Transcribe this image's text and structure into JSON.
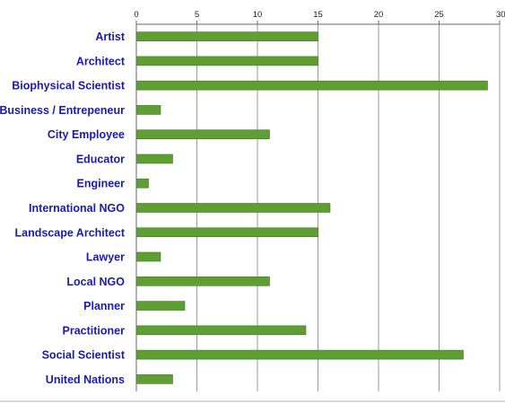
{
  "chart_data": {
    "type": "bar",
    "orientation": "horizontal",
    "categories": [
      "Artist",
      "Architect",
      "Biophysical Scientist",
      "Business / Entrepeneur",
      "City Employee",
      "Educator",
      "Engineer",
      "International NGO",
      "Landscape Architect",
      "Lawyer",
      "Local NGO",
      "Planner",
      "Practitioner",
      "Social Scientist",
      "United Nations"
    ],
    "values": [
      15,
      15,
      29,
      2,
      11,
      3,
      1,
      16,
      15,
      2,
      11,
      4,
      14,
      27,
      3
    ],
    "xlim": [
      0,
      30
    ],
    "x_ticks": [
      0,
      5,
      10,
      15,
      20,
      25,
      30
    ],
    "x_axis_position": "top",
    "grid": "vertical",
    "legend": "none",
    "title": "",
    "xlabel": "",
    "ylabel": ""
  },
  "colors": {
    "bar": "#5f9e33",
    "bar_stroke": "#3e7a1e",
    "category_text": "#1a1ab8",
    "grid": "#9a9a9a",
    "axis": "#6a6a6a"
  }
}
